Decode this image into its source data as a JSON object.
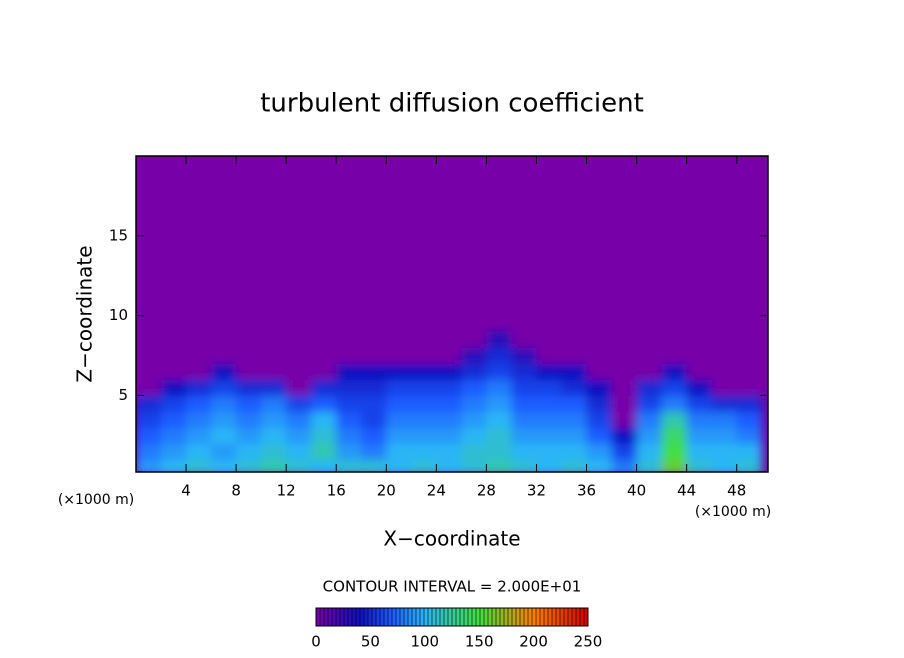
{
  "chart_data": {
    "type": "heatmap",
    "title": "turbulent diffusion coefficient",
    "x_label": "X−coordinate",
    "y_label": "Z−coordinate",
    "x_unit_label": "(×1000 m)",
    "y_unit_label": "(×1000 m)",
    "contour_interval_label": "CONTOUR INTERVAL = 2.000E+01",
    "xlim": [
      0,
      50.5
    ],
    "ylim": [
      0.2,
      20
    ],
    "xticks": [
      4,
      8,
      12,
      16,
      20,
      24,
      28,
      32,
      36,
      40,
      44,
      48
    ],
    "yticks": [
      5,
      10,
      15
    ],
    "x": [
      1,
      3,
      5,
      7,
      9,
      11,
      13,
      15,
      17,
      19,
      21,
      23,
      25,
      27,
      29,
      31,
      33,
      35,
      37,
      39,
      41,
      43,
      45,
      47,
      49
    ],
    "z": [
      0.5,
      1.5,
      2.5,
      3.5,
      4.5,
      5.5,
      6.5,
      7.5,
      8.5
    ],
    "values": [
      [
        90,
        100,
        110,
        100,
        110,
        120,
        110,
        100,
        110,
        110,
        100,
        110,
        100,
        110,
        120,
        110,
        100,
        110,
        100,
        80,
        110,
        160,
        110,
        100,
        110
      ],
      [
        80,
        90,
        100,
        90,
        100,
        110,
        100,
        120,
        90,
        80,
        100,
        100,
        100,
        110,
        110,
        100,
        100,
        100,
        90,
        60,
        100,
        150,
        100,
        100,
        100
      ],
      [
        70,
        80,
        90,
        100,
        90,
        100,
        90,
        110,
        80,
        70,
        90,
        90,
        90,
        100,
        110,
        90,
        90,
        90,
        70,
        40,
        90,
        140,
        90,
        90,
        80
      ],
      [
        60,
        70,
        80,
        90,
        80,
        90,
        80,
        100,
        70,
        60,
        80,
        80,
        80,
        90,
        100,
        80,
        80,
        80,
        60,
        0,
        80,
        120,
        80,
        80,
        70
      ],
      [
        50,
        60,
        70,
        80,
        70,
        80,
        60,
        70,
        60,
        60,
        70,
        70,
        70,
        80,
        90,
        70,
        70,
        70,
        50,
        0,
        60,
        80,
        60,
        50,
        50
      ],
      [
        0,
        40,
        50,
        60,
        50,
        50,
        0,
        50,
        50,
        50,
        60,
        60,
        60,
        70,
        80,
        60,
        60,
        50,
        40,
        0,
        50,
        60,
        40,
        0,
        0
      ],
      [
        0,
        0,
        0,
        40,
        0,
        0,
        0,
        0,
        40,
        40,
        40,
        40,
        40,
        50,
        60,
        50,
        40,
        40,
        0,
        0,
        0,
        40,
        0,
        0,
        0
      ],
      [
        0,
        0,
        0,
        0,
        0,
        0,
        0,
        0,
        0,
        0,
        0,
        0,
        0,
        30,
        50,
        30,
        0,
        0,
        0,
        0,
        0,
        0,
        0,
        0,
        0
      ],
      [
        0,
        0,
        0,
        0,
        0,
        0,
        0,
        0,
        0,
        0,
        0,
        0,
        0,
        0,
        30,
        0,
        0,
        0,
        0,
        0,
        0,
        0,
        0,
        0,
        0
      ]
    ],
    "background_color": "#7800a8",
    "colorscale": [
      [
        0,
        "#7800a8"
      ],
      [
        40,
        "#1010c0"
      ],
      [
        70,
        "#1e5cff"
      ],
      [
        100,
        "#29b6f6"
      ],
      [
        150,
        "#40e040"
      ],
      [
        200,
        "#ff8000"
      ],
      [
        250,
        "#d00000"
      ]
    ],
    "colorbar_lim": [
      0,
      250
    ],
    "colorbar_ticks": [
      0,
      50,
      100,
      150,
      200,
      250
    ]
  }
}
